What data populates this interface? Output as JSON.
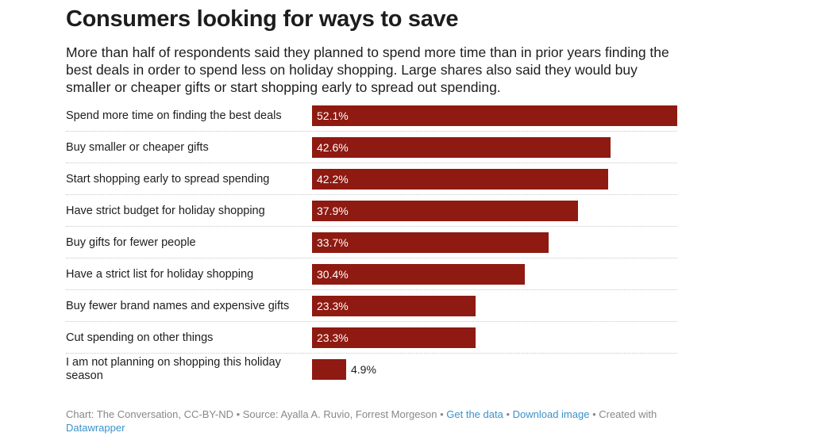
{
  "header": {
    "title": "Consumers looking for ways to save",
    "subtitle": "More than half of respondents said they planned to spend more time than in prior years finding the best deals in order to spend less on holiday shopping. Large shares also said they would buy smaller or cheaper gifts or start shopping early to spread out spending."
  },
  "colors": {
    "bar": "#8e1a12",
    "link": "#3a92c9",
    "footer_text": "#888888"
  },
  "chart_data": {
    "type": "bar",
    "orientation": "horizontal",
    "title": "Consumers looking for ways to save",
    "xlim": [
      0,
      52.1
    ],
    "grid": false,
    "categories": [
      "Spend more time on finding the best deals",
      "Buy smaller or cheaper gifts",
      "Start shopping early to spread spending",
      "Have strict budget for holiday shopping",
      "Buy gifts for fewer people",
      "Have a strict list for holiday shopping",
      "Buy fewer brand names and expensive gifts",
      "Cut spending on other things",
      "I am not planning on shopping this holiday season"
    ],
    "values": [
      52.1,
      42.6,
      42.2,
      37.9,
      33.7,
      30.4,
      23.3,
      23.3,
      4.9
    ],
    "value_labels": [
      "52.1%",
      "42.6%",
      "42.2%",
      "37.9%",
      "33.7%",
      "30.4%",
      "23.3%",
      "23.3%",
      "4.9%"
    ]
  },
  "footer": {
    "credit": "Chart: The Conversation, CC-BY-ND",
    "sep1": " • ",
    "source": "Source: Ayalla A. Ruvio, Forrest Morgeson",
    "sep2": " • ",
    "get_data": "Get the data",
    "sep3": " • ",
    "download": "Download image",
    "sep4": " • ",
    "created_with": "Created with",
    "datawrapper": "Datawrapper"
  }
}
